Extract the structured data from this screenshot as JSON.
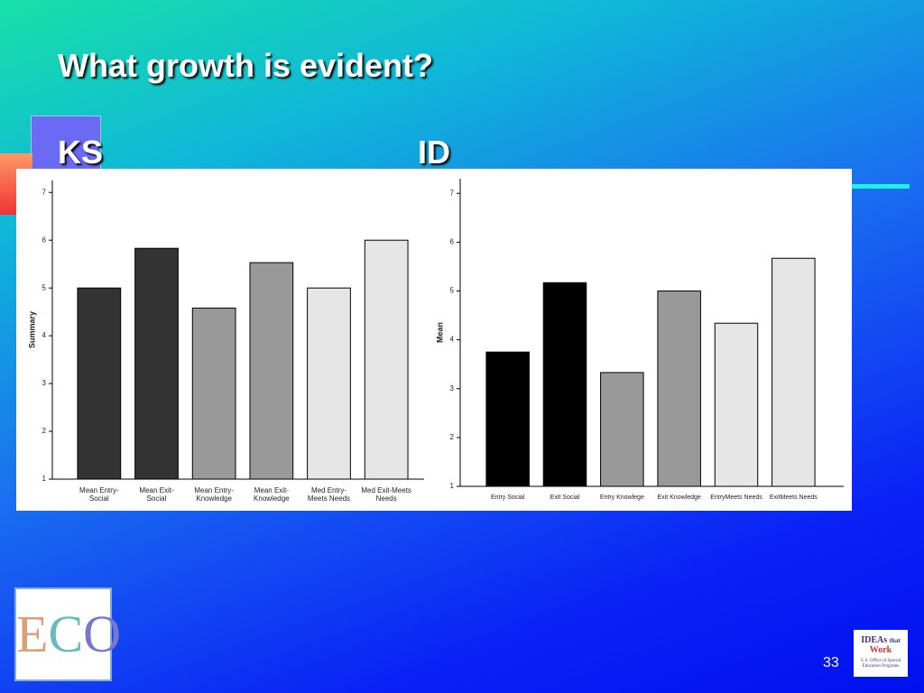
{
  "slide": {
    "title": "What growth is evident?",
    "left_label": "KS",
    "right_label": "ID",
    "page_number": "33",
    "logo_text": [
      "IDEAs",
      "that",
      "Work",
      "U.S. Office of Special Education Programs"
    ]
  },
  "chart_data": [
    {
      "type": "bar",
      "y_label": "Summary",
      "categories": [
        "Mean Entry-Social",
        "Mean Exit-Social",
        "Mean Entry-Knowledge",
        "Mean Exit-Knowledge",
        "Med Entry-Meets Needs",
        "Med Exit-Meets Needs"
      ],
      "values": [
        5.0,
        5.83,
        4.58,
        5.53,
        5.0,
        6.0
      ],
      "colors": [
        "#333333",
        "#333333",
        "#999999",
        "#999999",
        "#e6e6e6",
        "#e6e6e6"
      ],
      "ylim": [
        1,
        7.25
      ],
      "yticks": [
        1,
        2,
        3,
        4,
        5,
        6,
        7
      ]
    },
    {
      "type": "bar",
      "y_label": "Mean",
      "categories": [
        "Entry Social",
        "Exit Social",
        "Entry Knowlege",
        "Exit Knowledge",
        "EntryMeets Needs",
        "ExitMeets Needs"
      ],
      "values": [
        3.75,
        5.17,
        3.33,
        5.0,
        4.34,
        5.67
      ],
      "colors": [
        "#000000",
        "#000000",
        "#999999",
        "#999999",
        "#e6e6e6",
        "#e6e6e6"
      ],
      "ylim": [
        1,
        7.3
      ],
      "yticks": [
        1,
        2,
        3,
        4,
        5,
        6,
        7
      ]
    }
  ]
}
